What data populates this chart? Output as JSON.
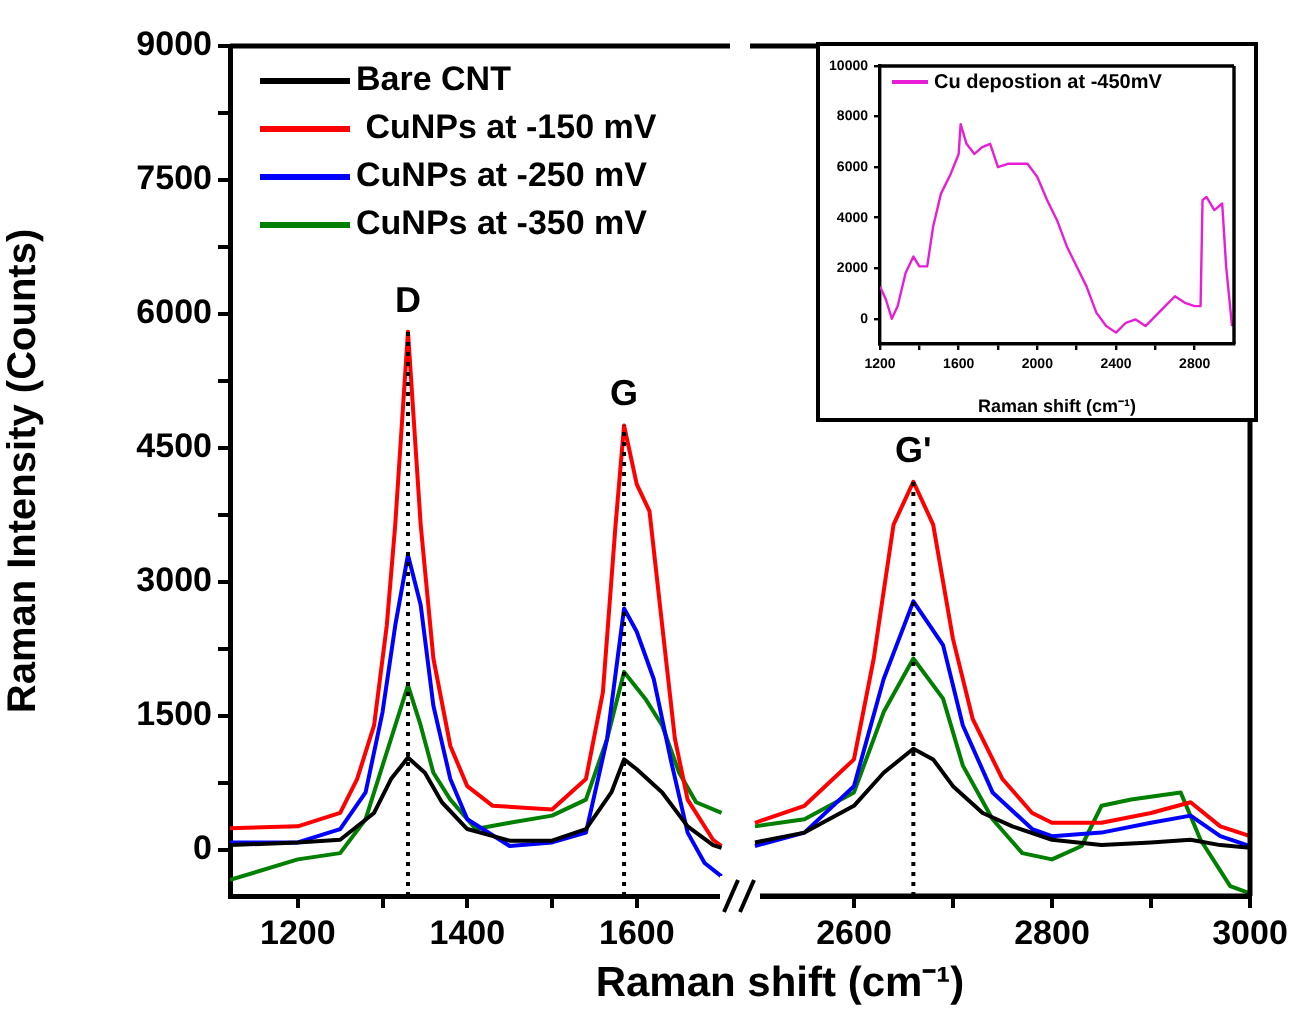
{
  "chart_data": [
    {
      "type": "line",
      "ylabel": "Raman Intensity (Counts)",
      "xlabel": "Raman shift (cm⁻¹)",
      "xlim": [
        1120,
        1710
      ],
      "xticks": [
        1200,
        {
          "value": 1300,
          "label": null
        },
        1400,
        {
          "value": 1500,
          "label": null
        },
        1600
      ],
      "ylim": [
        -520,
        9000
      ],
      "yticks": [
        0,
        {
          "value": 750,
          "label": null
        },
        1500,
        {
          "value": 2250,
          "label": null
        },
        3000,
        {
          "value": 3750,
          "label": null
        },
        4500,
        {
          "value": 5250,
          "label": null
        },
        6000,
        {
          "value": 6750,
          "label": null
        },
        7500,
        {
          "value": 8250,
          "label": null
        },
        9000
      ],
      "grid": false,
      "legend": "top left",
      "marker": "none",
      "line_style": "solid",
      "series": [
        {
          "name": "Bare CNT",
          "color": "#000000",
          "x": [
            1120,
            1200,
            1250,
            1290,
            1310,
            1330,
            1350,
            1370,
            1400,
            1450,
            1500,
            1540,
            1570,
            1585,
            1600,
            1630,
            1660,
            1690,
            1700
          ],
          "values": [
            50,
            80,
            110,
            410,
            790,
            1030,
            860,
            530,
            230,
            100,
            100,
            230,
            640,
            1010,
            900,
            640,
            260,
            50,
            20
          ]
        },
        {
          "name": " CuNPs at -150 mV",
          "color": "#ff0000",
          "x": [
            1120,
            1200,
            1250,
            1270,
            1290,
            1305,
            1315,
            1330,
            1345,
            1360,
            1380,
            1400,
            1430,
            1500,
            1540,
            1560,
            1575,
            1585,
            1600,
            1615,
            1630,
            1645,
            1660,
            1690,
            1700
          ],
          "values": [
            240,
            260,
            410,
            790,
            1390,
            2510,
            3640,
            5800,
            3640,
            2140,
            1160,
            710,
            490,
            450,
            790,
            1760,
            3640,
            4750,
            4090,
            3790,
            2510,
            1240,
            560,
            110,
            40
          ]
        },
        {
          "name": "CuNPs at -250 mV",
          "color": "#0000ff",
          "x": [
            1120,
            1200,
            1250,
            1280,
            1300,
            1315,
            1330,
            1345,
            1360,
            1380,
            1400,
            1450,
            1500,
            1540,
            1565,
            1585,
            1600,
            1620,
            1640,
            1660,
            1680,
            1700
          ],
          "values": [
            80,
            80,
            230,
            640,
            1540,
            2510,
            3300,
            2740,
            1610,
            790,
            340,
            40,
            80,
            190,
            1240,
            2700,
            2440,
            1910,
            1010,
            190,
            -150,
            -300
          ]
        },
        {
          "name": "CuNPs at -350 mV",
          "color": "#007f00",
          "x": [
            1120,
            1200,
            1250,
            1280,
            1300,
            1320,
            1330,
            1345,
            1360,
            1380,
            1410,
            1450,
            1500,
            1540,
            1565,
            1585,
            1610,
            1630,
            1650,
            1670,
            1700
          ],
          "values": [
            -340,
            -110,
            -40,
            340,
            940,
            1540,
            1840,
            1390,
            860,
            560,
            230,
            300,
            380,
            560,
            1240,
            1990,
            1690,
            1390,
            860,
            530,
            410
          ]
        }
      ],
      "ref_lines": [
        {
          "axis": "x",
          "value": 1330,
          "label": "D",
          "color": "#000000",
          "line_style": "dotted"
        },
        {
          "axis": "x",
          "value": 1585,
          "label": "G",
          "color": "#000000",
          "line_style": "dotted"
        }
      ]
    },
    {
      "type": "line",
      "xlim": [
        2495,
        3000
      ],
      "xticks": [
        2600,
        {
          "value": 2700,
          "label": null
        },
        2800,
        {
          "value": 2900,
          "label": null
        },
        3000
      ],
      "ylim": [
        -520,
        9000
      ],
      "tick_labels": "x",
      "grid": false,
      "marker": "none",
      "line_style": "solid",
      "series": [
        {
          "color": "#000000",
          "x": [
            2500,
            2550,
            2600,
            2630,
            2660,
            2680,
            2700,
            2730,
            2760,
            2800,
            2850,
            2900,
            2940,
            2970,
            3000
          ],
          "values": [
            80,
            190,
            490,
            860,
            1130,
            1010,
            710,
            410,
            260,
            110,
            50,
            80,
            110,
            50,
            20
          ]
        },
        {
          "color": "#ff0000",
          "x": [
            2500,
            2550,
            2600,
            2620,
            2640,
            2660,
            2680,
            2700,
            2720,
            2750,
            2780,
            2800,
            2850,
            2900,
            2940,
            2970,
            3000
          ],
          "values": [
            300,
            490,
            1010,
            2140,
            3640,
            4120,
            3640,
            2360,
            1460,
            790,
            410,
            300,
            300,
            410,
            530,
            260,
            150
          ]
        },
        {
          "color": "#0000ff",
          "x": [
            2500,
            2550,
            2600,
            2630,
            2660,
            2690,
            2710,
            2740,
            2780,
            2800,
            2850,
            2900,
            2940,
            2970,
            3000
          ],
          "values": [
            40,
            190,
            710,
            1910,
            2780,
            2290,
            1390,
            640,
            230,
            150,
            190,
            300,
            380,
            150,
            40
          ]
        },
        {
          "color": "#007f00",
          "x": [
            2500,
            2550,
            2600,
            2630,
            2660,
            2690,
            2710,
            2740,
            2770,
            2800,
            2830,
            2850,
            2880,
            2930,
            2950,
            2980,
            3000
          ],
          "values": [
            260,
            340,
            640,
            1540,
            2140,
            1690,
            940,
            340,
            -40,
            -110,
            40,
            490,
            560,
            640,
            110,
            -410,
            -490
          ]
        }
      ],
      "ref_lines": [
        {
          "axis": "x",
          "value": 2660,
          "label": "G'",
          "color": "#000000",
          "line_style": "dotted"
        }
      ]
    },
    {
      "type": "line",
      "xlabel": "Raman shift (cm⁻¹)",
      "xlim": [
        1200,
        3000
      ],
      "xticks": [
        1200,
        {
          "value": 1400,
          "label": null
        },
        1600,
        {
          "value": 1800,
          "label": null
        },
        2000,
        {
          "value": 2200,
          "label": null
        },
        2400,
        {
          "value": 2600,
          "label": null
        },
        2800
      ],
      "ylim": [
        -1000,
        10000
      ],
      "yticks": [
        0,
        2000,
        4000,
        6000,
        8000,
        10000
      ],
      "grid": false,
      "legend": "top left",
      "marker": "none",
      "line_style": "solid",
      "series": [
        {
          "name": "Cu depostion at -450mV",
          "color": "#e81ed6",
          "x": [
            1200,
            1230,
            1260,
            1290,
            1330,
            1370,
            1400,
            1440,
            1470,
            1510,
            1560,
            1600,
            1610,
            1640,
            1680,
            1720,
            1760,
            1800,
            1850,
            1900,
            1950,
            2000,
            2050,
            2100,
            2150,
            2200,
            2250,
            2300,
            2350,
            2400,
            2450,
            2500,
            2550,
            2600,
            2650,
            2700,
            2750,
            2800,
            2830,
            2840,
            2860,
            2900,
            2940,
            2960,
            2990
          ],
          "values": [
            1280,
            760,
            0,
            500,
            1810,
            2460,
            2070,
            2070,
            3640,
            4950,
            5740,
            6520,
            7700,
            6920,
            6520,
            6790,
            6920,
            6000,
            6130,
            6130,
            6130,
            5610,
            4690,
            3900,
            2860,
            2070,
            1280,
            240,
            -290,
            -550,
            -160,
            -30,
            -290,
            100,
            500,
            890,
            630,
            500,
            500,
            4690,
            4820,
            4300,
            4560,
            2070,
            -290
          ]
        }
      ]
    }
  ]
}
